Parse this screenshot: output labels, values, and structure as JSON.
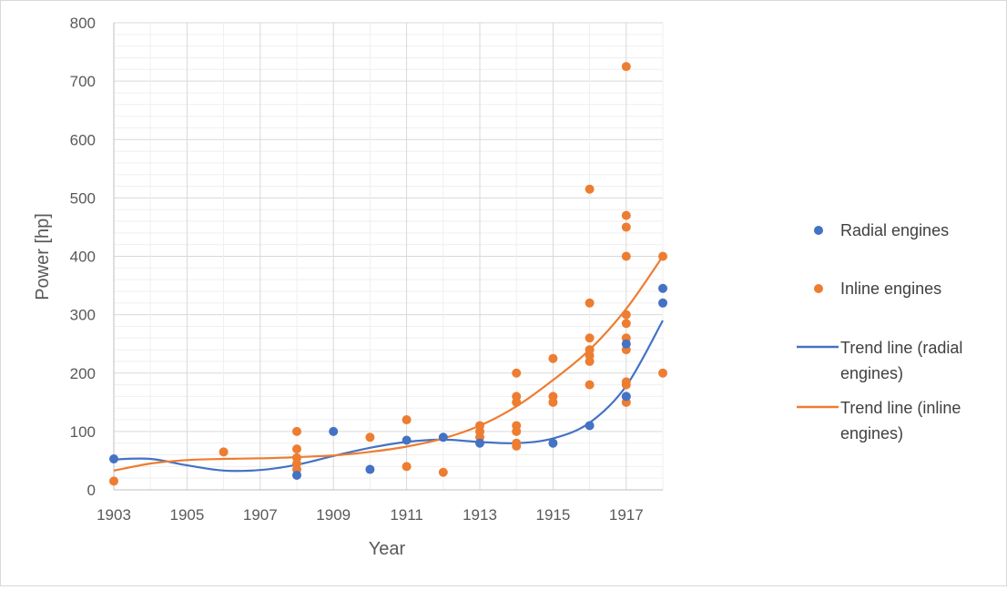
{
  "chart_data": {
    "type": "scatter",
    "xlabel": "Year",
    "ylabel": "Power [hp]",
    "xlim": [
      1903,
      1918
    ],
    "ylim": [
      0,
      800
    ],
    "x_ticks": [
      1903,
      1905,
      1907,
      1909,
      1911,
      1913,
      1915,
      1917
    ],
    "y_ticks": [
      0,
      100,
      200,
      300,
      400,
      500,
      600,
      700,
      800
    ],
    "grid": true,
    "legend_position": "right",
    "series": [
      {
        "name": "Radial engines",
        "kind": "points",
        "color": "#4472c4",
        "points": [
          [
            1903,
            53
          ],
          [
            1908,
            25
          ],
          [
            1909,
            100
          ],
          [
            1910,
            35
          ],
          [
            1911,
            85
          ],
          [
            1912,
            90
          ],
          [
            1913,
            80
          ],
          [
            1915,
            80
          ],
          [
            1916,
            110
          ],
          [
            1917,
            160
          ],
          [
            1917,
            250
          ],
          [
            1918,
            320
          ],
          [
            1918,
            345
          ]
        ]
      },
      {
        "name": "Inline engines",
        "kind": "points",
        "color": "#ed7d31",
        "points": [
          [
            1903,
            15
          ],
          [
            1906,
            65
          ],
          [
            1908,
            35
          ],
          [
            1908,
            45
          ],
          [
            1908,
            55
          ],
          [
            1908,
            70
          ],
          [
            1908,
            100
          ],
          [
            1910,
            90
          ],
          [
            1911,
            40
          ],
          [
            1911,
            120
          ],
          [
            1912,
            30
          ],
          [
            1913,
            90
          ],
          [
            1913,
            100
          ],
          [
            1913,
            110
          ],
          [
            1914,
            75
          ],
          [
            1914,
            80
          ],
          [
            1914,
            100
          ],
          [
            1914,
            110
          ],
          [
            1914,
            150
          ],
          [
            1914,
            160
          ],
          [
            1914,
            200
          ],
          [
            1915,
            150
          ],
          [
            1915,
            160
          ],
          [
            1915,
            225
          ],
          [
            1916,
            180
          ],
          [
            1916,
            220
          ],
          [
            1916,
            230
          ],
          [
            1916,
            240
          ],
          [
            1916,
            260
          ],
          [
            1916,
            320
          ],
          [
            1916,
            515
          ],
          [
            1917,
            150
          ],
          [
            1917,
            160
          ],
          [
            1917,
            180
          ],
          [
            1917,
            185
          ],
          [
            1917,
            240
          ],
          [
            1917,
            260
          ],
          [
            1917,
            285
          ],
          [
            1917,
            300
          ],
          [
            1917,
            400
          ],
          [
            1917,
            450
          ],
          [
            1917,
            470
          ],
          [
            1917,
            725
          ],
          [
            1918,
            200
          ],
          [
            1918,
            400
          ]
        ]
      },
      {
        "name": "Trend line (radial engines)",
        "kind": "line",
        "color": "#4472c4",
        "points": [
          [
            1903,
            52
          ],
          [
            1904,
            53
          ],
          [
            1905,
            42
          ],
          [
            1906,
            33
          ],
          [
            1907,
            34
          ],
          [
            1908,
            43
          ],
          [
            1909,
            58
          ],
          [
            1910,
            72
          ],
          [
            1911,
            82
          ],
          [
            1912,
            86
          ],
          [
            1913,
            82
          ],
          [
            1914,
            80
          ],
          [
            1915,
            88
          ],
          [
            1916,
            115
          ],
          [
            1917,
            178
          ],
          [
            1918,
            290
          ]
        ]
      },
      {
        "name": "Trend line (inline engines)",
        "kind": "line",
        "color": "#ed7d31",
        "points": [
          [
            1903,
            33
          ],
          [
            1904,
            45
          ],
          [
            1905,
            51
          ],
          [
            1906,
            53
          ],
          [
            1907,
            54
          ],
          [
            1908,
            56
          ],
          [
            1909,
            59
          ],
          [
            1910,
            65
          ],
          [
            1911,
            74
          ],
          [
            1912,
            88
          ],
          [
            1913,
            110
          ],
          [
            1914,
            143
          ],
          [
            1915,
            188
          ],
          [
            1916,
            240
          ],
          [
            1917,
            310
          ],
          [
            1918,
            400
          ]
        ]
      }
    ],
    "legend": {
      "radial": "Radial engines",
      "inline": "Inline engines",
      "trend_radial_line1": "Trend line (radial",
      "trend_radial_line2": "engines)",
      "trend_inline_line1": "Trend line (inline",
      "trend_inline_line2": "engines)"
    }
  }
}
